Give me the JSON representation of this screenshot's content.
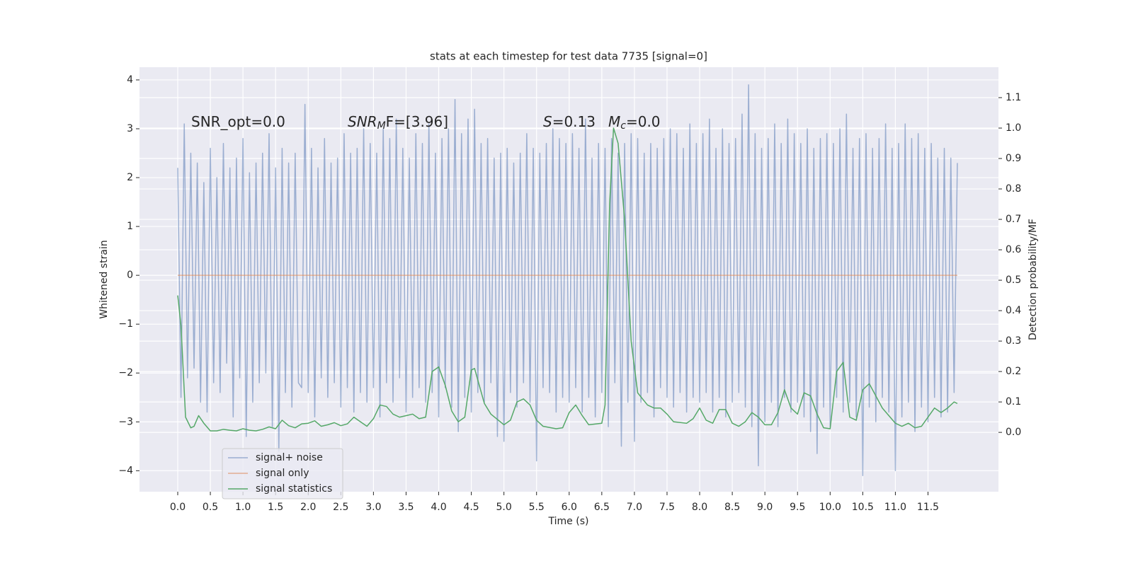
{
  "chart_data": {
    "type": "line",
    "title": "stats at each timestep for test data 7735 [signal=0]",
    "xlabel": "Time (s)",
    "ylabel": "Whitened strain",
    "y2label": "Detection probability/MF",
    "xlim": [
      -0.586,
      12.58
    ],
    "ylim": [
      -4.43,
      4.26
    ],
    "y2lim": [
      -0.195,
      1.2
    ],
    "xticks": [
      {
        "value": 0,
        "label": "0.0"
      },
      0.5,
      {
        "value": 1,
        "label": "1.0"
      },
      1.5,
      {
        "value": 2,
        "label": "2.0"
      },
      2.5,
      {
        "value": 3,
        "label": "3.0"
      },
      3.5,
      {
        "value": 4,
        "label": "4.0"
      },
      4.5,
      {
        "value": 5,
        "label": "5.0"
      },
      5.5,
      {
        "value": 6,
        "label": "6.0"
      },
      6.5,
      {
        "value": 7,
        "label": "7.0"
      },
      7.5,
      {
        "value": 8,
        "label": "8.0"
      },
      8.5,
      {
        "value": 9,
        "label": "9.0"
      },
      9.5,
      {
        "value": 10,
        "label": "10.0"
      },
      10.5,
      {
        "value": 11,
        "label": "11.0"
      },
      11.5
    ],
    "yticks": [
      {
        "value": -4,
        "label": "−4"
      },
      {
        "value": -3,
        "label": "−3"
      },
      {
        "value": -2,
        "label": "−2"
      },
      {
        "value": -1,
        "label": "−1"
      },
      0,
      1,
      2,
      3,
      4
    ],
    "y2ticks": [
      {
        "value": 0,
        "label": "0.0"
      },
      0.1,
      0.2,
      0.3,
      0.4,
      0.5,
      0.6,
      0.7,
      0.8,
      0.9,
      {
        "value": 1,
        "label": "1.0"
      },
      1.1
    ],
    "grid": true,
    "legend": "lower left",
    "annotations": [
      {
        "text": "SNR_opt=0.0",
        "italic": false
      },
      {
        "text": "SNR",
        "sub": "M",
        "tail": "F=[3.96]",
        "italic": true
      },
      {
        "text": "S",
        "tail": "=0.13",
        "italic": true
      },
      {
        "text": "M",
        "sub": "c",
        "tail": "=0.0",
        "italic": true
      }
    ],
    "series": [
      {
        "name": "signal+ noise",
        "color": "#4c72b0",
        "opacity": 0.5,
        "x": [
          0,
          0.05,
          0.1,
          0.15,
          0.2,
          0.25,
          0.3,
          0.35,
          0.4,
          0.45,
          0.5,
          0.55,
          0.6,
          0.65,
          0.7,
          0.75,
          0.8,
          0.85,
          0.9,
          0.95,
          1,
          1.05,
          1.1,
          1.15,
          1.2,
          1.25,
          1.3,
          1.35,
          1.4,
          1.45,
          1.5,
          1.55,
          1.6,
          1.65,
          1.7,
          1.75,
          1.8,
          1.85,
          1.9,
          1.95,
          2,
          2.05,
          2.1,
          2.15,
          2.2,
          2.25,
          2.3,
          2.35,
          2.4,
          2.45,
          2.5,
          2.55,
          2.6,
          2.65,
          2.7,
          2.75,
          2.8,
          2.85,
          2.9,
          2.95,
          3,
          3.05,
          3.1,
          3.15,
          3.2,
          3.25,
          3.3,
          3.35,
          3.4,
          3.45,
          3.5,
          3.55,
          3.6,
          3.65,
          3.7,
          3.75,
          3.8,
          3.85,
          3.9,
          3.95,
          4,
          4.05,
          4.1,
          4.15,
          4.2,
          4.25,
          4.3,
          4.35,
          4.4,
          4.45,
          4.5,
          4.55,
          4.6,
          4.65,
          4.7,
          4.75,
          4.8,
          4.85,
          4.9,
          4.95,
          5,
          5.05,
          5.1,
          5.15,
          5.2,
          5.25,
          5.3,
          5.35,
          5.4,
          5.45,
          5.5,
          5.55,
          5.6,
          5.65,
          5.7,
          5.75,
          5.8,
          5.85,
          5.9,
          5.95,
          6,
          6.05,
          6.1,
          6.15,
          6.2,
          6.25,
          6.3,
          6.35,
          6.4,
          6.45,
          6.5,
          6.55,
          6.6,
          6.65,
          6.7,
          6.75,
          6.8,
          6.85,
          6.9,
          6.95,
          7,
          7.05,
          7.1,
          7.15,
          7.2,
          7.25,
          7.3,
          7.35,
          7.4,
          7.45,
          7.5,
          7.55,
          7.6,
          7.65,
          7.7,
          7.75,
          7.8,
          7.85,
          7.9,
          7.95,
          8,
          8.05,
          8.1,
          8.15,
          8.2,
          8.25,
          8.3,
          8.35,
          8.4,
          8.45,
          8.5,
          8.55,
          8.6,
          8.65,
          8.7,
          8.75,
          8.8,
          8.85,
          8.9,
          8.95,
          9,
          9.05,
          9.1,
          9.15,
          9.2,
          9.25,
          9.3,
          9.35,
          9.4,
          9.45,
          9.5,
          9.55,
          9.6,
          9.65,
          9.7,
          9.75,
          9.8,
          9.85,
          9.9,
          9.95,
          10,
          10.05,
          10.1,
          10.15,
          10.2,
          10.25,
          10.3,
          10.35,
          10.4,
          10.45,
          10.5,
          10.55,
          10.6,
          10.65,
          10.7,
          10.75,
          10.8,
          10.85,
          10.9,
          10.95,
          11,
          11.05,
          11.1,
          11.15,
          11.2,
          11.25,
          11.3,
          11.35,
          11.4,
          11.45,
          11.5,
          11.55,
          11.6,
          11.65,
          11.7,
          11.75,
          11.8,
          11.85,
          11.9,
          11.95
        ],
        "values": [
          2.2,
          -2.5,
          3.1,
          -2.1,
          2.5,
          -1.9,
          2.3,
          -2.6,
          1.9,
          -2.8,
          2.6,
          -2.2,
          2.0,
          -2.4,
          2.7,
          -1.8,
          2.2,
          -2.9,
          2.4,
          -2.1,
          2.8,
          -3.3,
          2.1,
          -2.6,
          2.3,
          -2.2,
          2.5,
          -2.0,
          2.9,
          -3.1,
          2.2,
          -3.6,
          2.6,
          -2.4,
          2.3,
          -2.7,
          2.5,
          -2.2,
          -2.3,
          3.5,
          -2.4,
          2.6,
          -2.9,
          2.2,
          -2.1,
          2.8,
          -2.5,
          2.3,
          -2.2,
          2.4,
          -2.7,
          2.9,
          -2.3,
          2.5,
          -2.8,
          2.6,
          -2.4,
          3.0,
          -2.6,
          2.7,
          -2.3,
          2.5,
          -2.9,
          3.0,
          -2.2,
          2.8,
          -2.6,
          3.2,
          -2.1,
          2.6,
          -2.8,
          2.4,
          -2.5,
          2.9,
          -2.3,
          2.7,
          -2.6,
          3.1,
          -2.4,
          2.5,
          -2.9,
          2.8,
          -2.3,
          3.0,
          -2.7,
          3.6,
          -3.2,
          2.9,
          -2.5,
          3.2,
          -2.8,
          3.4,
          -2.4,
          2.7,
          -2.6,
          2.8,
          -2.2,
          2.4,
          -3.3,
          2.5,
          -3.4,
          2.6,
          -2.4,
          2.3,
          -2.7,
          2.5,
          -2.2,
          2.9,
          -2.6,
          2.6,
          -3.8,
          2.5,
          -2.3,
          2.7,
          -2.4,
          3.0,
          -2.8,
          2.8,
          -2.5,
          2.7,
          -2.6,
          2.9,
          -2.3,
          2.6,
          -2.8,
          3.2,
          -2.5,
          2.4,
          -2.9,
          2.7,
          -2.4,
          2.6,
          -3.1,
          2.8,
          -2.2,
          2.5,
          -3.5,
          2.7,
          -2.6,
          2.9,
          -3.4,
          2.8,
          -2.6,
          2.5,
          -2.4,
          2.7,
          -2.9,
          2.6,
          -2.3,
          2.8,
          -2.5,
          3.0,
          -2.7,
          2.9,
          -2.4,
          2.6,
          -2.8,
          3.1,
          -2.5,
          2.7,
          -2.6,
          2.9,
          -2.4,
          3.2,
          -2.8,
          2.6,
          -2.5,
          3.0,
          -2.9,
          2.7,
          -2.6,
          2.8,
          -2.4,
          3.3,
          -2.7,
          3.9,
          -3.1,
          2.9,
          -3.9,
          2.6,
          -3.0,
          2.8,
          -2.6,
          3.1,
          -3.1,
          2.7,
          -2.5,
          3.2,
          -2.8,
          2.9,
          -2.6,
          2.7,
          -2.9,
          3.0,
          -3.2,
          2.6,
          -3.65,
          2.8,
          -2.7,
          2.9,
          -3.1,
          2.7,
          -2.5,
          3.0,
          -2.8,
          3.3,
          -2.6,
          2.6,
          -2.9,
          2.8,
          -4.1,
          2.9,
          -2.7,
          2.6,
          -3.0,
          2.8,
          -2.5,
          3.1,
          -2.8,
          2.6,
          -4.0,
          2.7,
          -2.9,
          3.1,
          -2.6,
          2.8,
          -3.2,
          2.9,
          -2.7,
          2.6,
          -3.0,
          2.7,
          -2.5,
          2.4,
          -2.9,
          2.6,
          -2.8,
          2.4,
          -2.4,
          2.3
        ]
      },
      {
        "name": "signal only",
        "color": "#dd8452",
        "opacity": 0.6,
        "x": [
          0,
          11.95
        ],
        "values": [
          0,
          0
        ]
      },
      {
        "name": "signal statistics",
        "color": "#55a868",
        "opacity": 1,
        "axis": "y2",
        "x": [
          0,
          0.05,
          0.12,
          0.2,
          0.25,
          0.32,
          0.4,
          0.5,
          0.6,
          0.7,
          0.8,
          0.9,
          1.0,
          1.1,
          1.2,
          1.3,
          1.4,
          1.5,
          1.6,
          1.7,
          1.8,
          1.9,
          2.0,
          2.1,
          2.2,
          2.3,
          2.4,
          2.5,
          2.6,
          2.7,
          2.8,
          2.9,
          3.0,
          3.1,
          3.2,
          3.3,
          3.4,
          3.5,
          3.6,
          3.7,
          3.8,
          3.9,
          4.0,
          4.1,
          4.2,
          4.3,
          4.4,
          4.5,
          4.55,
          4.7,
          4.8,
          5.0,
          5.1,
          5.2,
          5.3,
          5.4,
          5.5,
          5.6,
          5.8,
          5.9,
          6.0,
          6.1,
          6.2,
          6.3,
          6.5,
          6.55,
          6.62,
          6.68,
          6.75,
          6.85,
          6.95,
          7.05,
          7.2,
          7.3,
          7.4,
          7.5,
          7.6,
          7.8,
          7.9,
          8.0,
          8.1,
          8.2,
          8.3,
          8.4,
          8.5,
          8.6,
          8.7,
          8.8,
          8.9,
          9.0,
          9.1,
          9.2,
          9.3,
          9.4,
          9.5,
          9.6,
          9.7,
          9.8,
          9.9,
          10.0,
          10.1,
          10.2,
          10.3,
          10.4,
          10.5,
          10.6,
          10.8,
          11.0,
          11.1,
          11.2,
          11.3,
          11.4,
          11.5,
          11.6,
          11.7,
          11.8,
          11.9,
          11.95
        ],
        "values": [
          0.45,
          0.35,
          0.05,
          0.015,
          0.02,
          0.055,
          0.03,
          0.005,
          0.005,
          0.01,
          0.007,
          0.005,
          0.012,
          0.007,
          0.005,
          0.01,
          0.018,
          0.012,
          0.04,
          0.022,
          0.015,
          0.028,
          0.03,
          0.038,
          0.02,
          0.025,
          0.032,
          0.022,
          0.028,
          0.05,
          0.035,
          0.02,
          0.045,
          0.09,
          0.085,
          0.06,
          0.05,
          0.055,
          0.06,
          0.045,
          0.05,
          0.2,
          0.215,
          0.155,
          0.07,
          0.035,
          0.05,
          0.205,
          0.21,
          0.095,
          0.06,
          0.025,
          0.04,
          0.1,
          0.11,
          0.09,
          0.04,
          0.02,
          0.012,
          0.015,
          0.065,
          0.09,
          0.055,
          0.025,
          0.03,
          0.09,
          0.75,
          1.0,
          0.95,
          0.7,
          0.3,
          0.13,
          0.09,
          0.08,
          0.08,
          0.06,
          0.035,
          0.03,
          0.045,
          0.08,
          0.04,
          0.03,
          0.075,
          0.075,
          0.03,
          0.02,
          0.035,
          0.065,
          0.05,
          0.025,
          0.025,
          0.065,
          0.14,
          0.08,
          0.06,
          0.13,
          0.12,
          0.06,
          0.015,
          0.012,
          0.2,
          0.23,
          0.05,
          0.04,
          0.14,
          0.16,
          0.08,
          0.03,
          0.02,
          0.03,
          0.015,
          0.02,
          0.05,
          0.08,
          0.065,
          0.08,
          0.1,
          0.095
        ]
      }
    ]
  }
}
